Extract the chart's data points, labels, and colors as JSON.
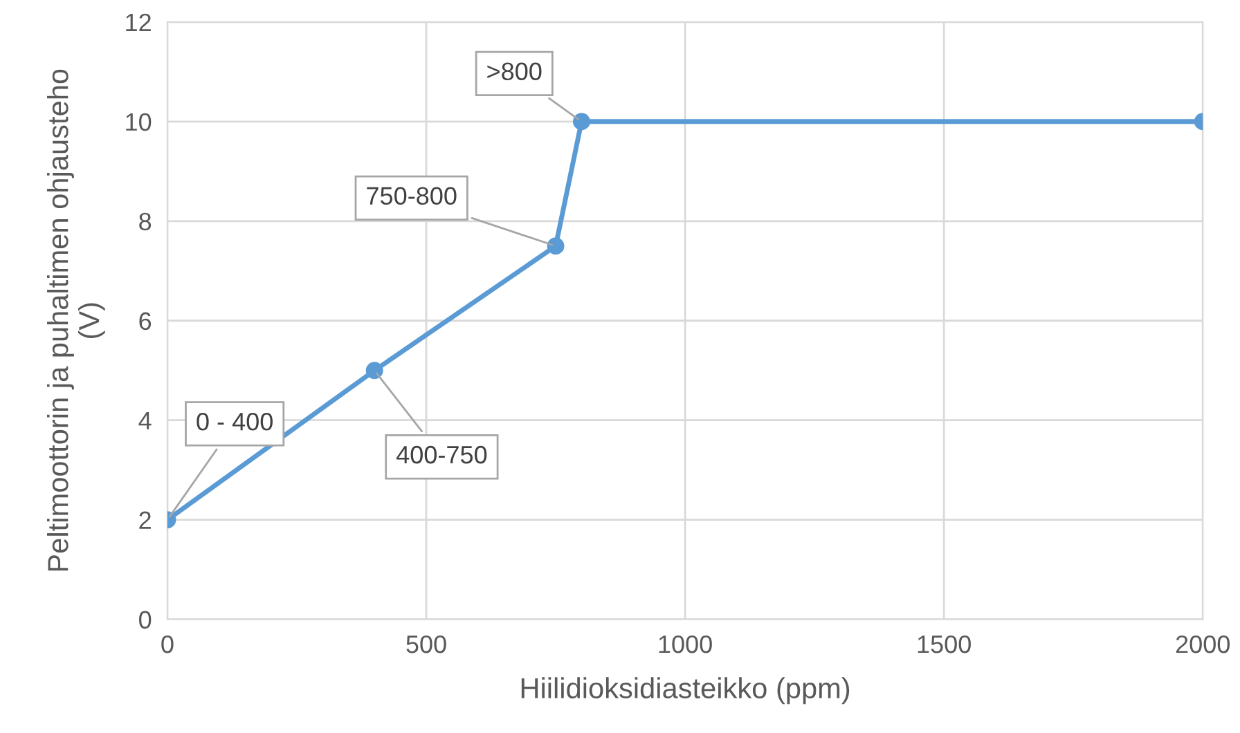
{
  "chart_data": {
    "type": "line",
    "xlabel": "Hiilidioksidiasteikko (ppm)",
    "ylabel": "Peltimoottorin ja puhaltimen ohjausteho\n(V)",
    "x": [
      0,
      400,
      750,
      800,
      2000
    ],
    "series": [
      {
        "color": "#5b9bd5",
        "values": [
          2,
          5,
          7.5,
          10,
          10
        ]
      }
    ],
    "xlim": [
      0,
      2000
    ],
    "xticks": [
      0,
      500,
      1000,
      1500,
      2000
    ],
    "ylim": [
      0,
      12
    ],
    "yticks": [
      0,
      2,
      4,
      6,
      8,
      10,
      12
    ],
    "grid": true,
    "marker": "circle",
    "line_style": "solid",
    "annotations": [
      {
        "text": "0 - 400",
        "x": 0,
        "y": 2
      },
      {
        "text": "400-750",
        "x": 400,
        "y": 5
      },
      {
        "text": "750-800",
        "x": 750,
        "y": 7.5
      },
      {
        "text": ">800",
        "x": 800,
        "y": 10
      }
    ]
  }
}
